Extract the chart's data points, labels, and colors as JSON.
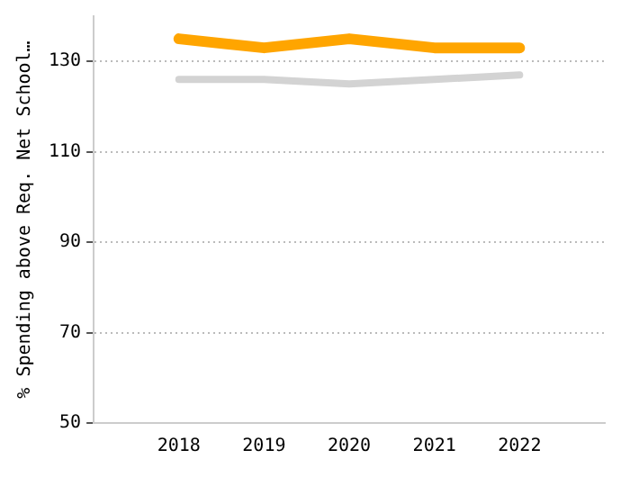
{
  "chart_data": {
    "type": "line",
    "ylabel": "% Spending above Req. Net School…",
    "x": [
      2018,
      2019,
      2020,
      2021,
      2022
    ],
    "series": [
      {
        "color": "#ffa500",
        "values": [
          135,
          133,
          135,
          133,
          133
        ]
      },
      {
        "color": "#d3d3d3",
        "values": [
          126,
          126,
          125,
          126,
          127
        ]
      }
    ],
    "xlim": [
      2017,
      2023
    ],
    "xticks": [
      2018,
      2019,
      2020,
      2021,
      2022
    ],
    "ylim": [
      50,
      140
    ],
    "yticks": [
      50,
      70,
      90,
      110,
      130
    ],
    "grid": "y",
    "legend": false,
    "marker": "none",
    "line_style": "solid"
  }
}
